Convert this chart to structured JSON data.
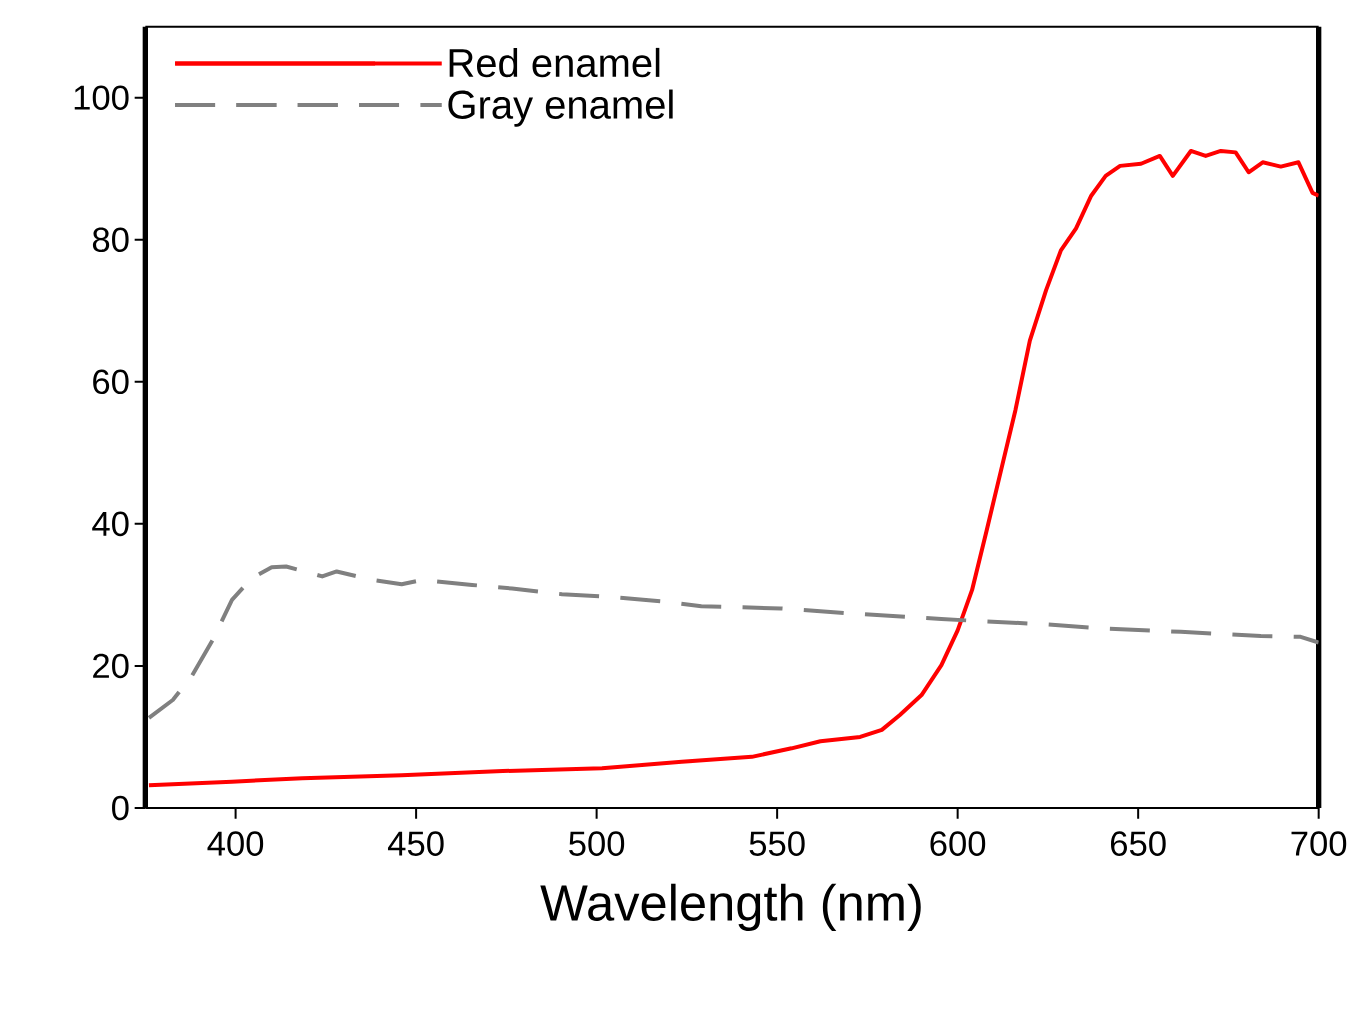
{
  "chart_data": {
    "type": "line",
    "xlabel": "Wavelength (nm)",
    "xlim": [
      375,
      700
    ],
    "ylim": [
      0,
      110
    ],
    "xticks": [
      400,
      450,
      500,
      550,
      600,
      650,
      700
    ],
    "yticks": [
      0,
      20,
      40,
      60,
      80,
      100
    ],
    "legend": "top left",
    "series": [
      {
        "name": "Red enamel",
        "color": "#ff0000",
        "line_style": "solid",
        "x": [
          376,
          399,
          418.5,
          446,
          474,
          501.5,
          523.6,
          543,
          554,
          562,
          573,
          579,
          584,
          590,
          595.5,
          600,
          604,
          608,
          612,
          616,
          620,
          624.5,
          628.6,
          632.8,
          637,
          641,
          645,
          650.8,
          656,
          659.6,
          664.6,
          668.7,
          672.9,
          677,
          680.6,
          684.5,
          689.5,
          694.4,
          698.3,
          700
        ],
        "values": [
          3.2,
          3.7,
          4.2,
          4.6,
          5.2,
          5.6,
          6.5,
          7.2,
          8.4,
          9.4,
          10.0,
          11.0,
          13.1,
          15.9,
          20.1,
          25,
          30.7,
          39,
          47.5,
          56,
          65.8,
          72.9,
          78.5,
          81.6,
          86.2,
          89,
          90.4,
          90.7,
          91.8,
          89,
          92.5,
          91.8,
          92.5,
          92.3,
          89.5,
          90.9,
          90.3,
          90.9,
          86.6,
          86.2
        ]
      },
      {
        "name": "Gray enamel",
        "color": "#808080",
        "line_style": "dashed",
        "x": [
          376,
          382.6,
          388,
          393.6,
          399,
          404.4,
          410,
          414,
          419.9,
          424,
          428,
          437.9,
          446,
          451.7,
          465.5,
          476.6,
          490.4,
          501.5,
          518,
          529,
          551,
          573,
          595.5,
          606.5,
          623,
          639.7,
          661.8,
          684,
          695,
          700
        ],
        "values": [
          12.7,
          15.2,
          18.7,
          23.6,
          29.3,
          32.3,
          33.9,
          34.0,
          33.2,
          32.6,
          33.3,
          32.1,
          31.5,
          32.1,
          31.4,
          30.9,
          30.1,
          29.8,
          29.1,
          28.4,
          28.1,
          27.3,
          26.6,
          26.3,
          25.9,
          25.3,
          24.8,
          24.2,
          24.1,
          23.3
        ]
      }
    ]
  }
}
